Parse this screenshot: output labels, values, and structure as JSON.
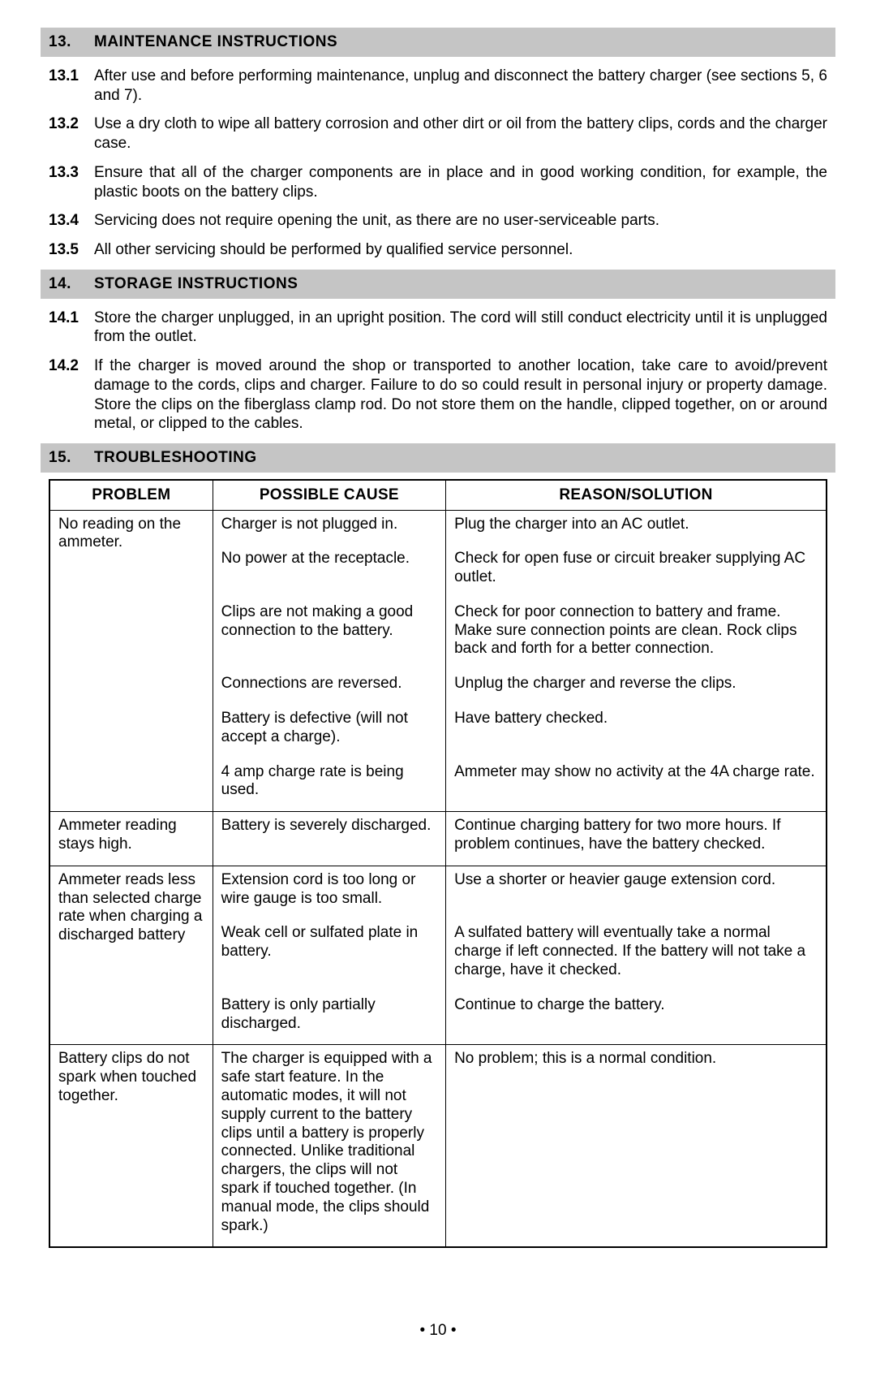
{
  "colors": {
    "header_bg": "#c5c5c5",
    "text": "#000000",
    "page_bg": "#ffffff",
    "border": "#000000"
  },
  "typography": {
    "body_fontsize_pt": 14,
    "header_fontsize_pt": 14,
    "font_family": "Arial"
  },
  "sections": [
    {
      "number": "13.",
      "title": "MAINTENANCE INSTRUCTIONS",
      "items": [
        {
          "num": "13.1",
          "text": "After use and before performing maintenance, unplug and disconnect the battery charger (see sections 5, 6 and 7)."
        },
        {
          "num": "13.2",
          "text": "Use a dry cloth to wipe all battery corrosion and other dirt or oil from the battery clips, cords and the charger case."
        },
        {
          "num": "13.3",
          "text": "Ensure that all of the charger components are in place and in good working condition, for example, the plastic boots on the battery clips."
        },
        {
          "num": "13.4",
          "text": "Servicing does not require opening the unit, as there are no user-serviceable parts."
        },
        {
          "num": "13.5",
          "text": "All other servicing should be performed by qualified service personnel."
        }
      ]
    },
    {
      "number": "14.",
      "title": "STORAGE INSTRUCTIONS",
      "items": [
        {
          "num": "14.1",
          "text": "Store the charger unplugged, in an upright position. The cord will still conduct electricity until it is unplugged from the outlet."
        },
        {
          "num": "14.2",
          "text": "If the charger is moved around the shop or transported to another location, take care to avoid/prevent damage to the cords, clips and charger. Failure to do so could result in personal injury or property damage. Store the clips on the fiberglass clamp rod. Do not store them on the handle, clipped together, on or around metal, or clipped to the cables."
        }
      ]
    },
    {
      "number": "15.",
      "title": "TROUBLESHOOTING",
      "items": []
    }
  ],
  "table": {
    "headers": [
      "PROBLEM",
      "POSSIBLE CAUSE",
      "REASON/SOLUTION"
    ],
    "column_widths": [
      "21%",
      "30%",
      "49%"
    ],
    "groups": [
      {
        "problem": "No reading on the ammeter.",
        "rows": [
          {
            "cause": "Charger is not plugged in.",
            "solution": "Plug the charger into an AC outlet."
          },
          {
            "cause": "No power at the receptacle.",
            "solution": "Check for open fuse or circuit breaker supplying AC outlet."
          },
          {
            "cause": "Clips are not making a good connection to the battery.",
            "solution": "Check for poor connection to battery and frame. Make sure connection points are clean. Rock clips back and forth for a better connection."
          },
          {
            "cause": "Connections are reversed.",
            "solution": "Unplug the charger and reverse the clips."
          },
          {
            "cause": "Battery is defective (will not accept a charge).",
            "solution": "Have battery checked."
          },
          {
            "cause": "4 amp charge rate is being used.",
            "solution": "Ammeter may show no activity at the 4A charge rate."
          }
        ]
      },
      {
        "problem": "Ammeter reading stays high.",
        "rows": [
          {
            "cause": "Battery is severely discharged.",
            "solution": "Continue charging battery for two more hours. If problem continues, have the battery checked."
          }
        ]
      },
      {
        "problem": "Ammeter reads less than selected charge rate when charging a discharged battery",
        "rows": [
          {
            "cause": "Extension cord is too long or wire gauge is too small.",
            "solution": "Use a shorter or heavier gauge extension cord."
          },
          {
            "cause": "Weak cell or sulfated plate in battery.",
            "solution": "A sulfated battery will eventually take a normal charge if left connected. If the battery will not take a charge, have it checked."
          },
          {
            "cause": "Battery is only partially discharged.",
            "solution": "Continue to charge the battery."
          }
        ]
      },
      {
        "problem": "Battery clips do not spark when touched together.",
        "rows": [
          {
            "cause": "The charger is equipped with a safe start feature. In the automatic modes, it will not supply current to the battery clips until a battery is properly connected. Unlike traditional chargers, the clips will not spark if touched together. (In manual mode, the clips should spark.)",
            "solution": "No problem; this is a normal condition."
          }
        ]
      }
    ]
  },
  "page_number": "• 10 •"
}
